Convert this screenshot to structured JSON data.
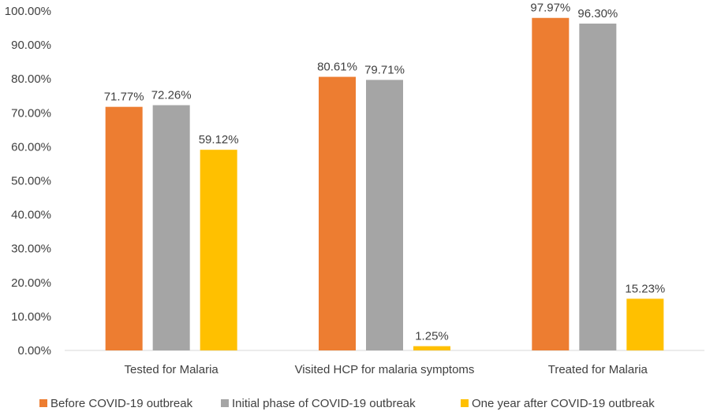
{
  "chart_data": {
    "type": "bar",
    "categories": [
      "Tested for Malaria",
      "Visited HCP for malaria symptoms",
      "Treated for Malaria"
    ],
    "series": [
      {
        "name": "Before COVID-19 outbreak",
        "color": "#ED7D31",
        "values": [
          71.77,
          80.61,
          97.97
        ],
        "labels": [
          "71.77%",
          "80.61%",
          "97.97%"
        ]
      },
      {
        "name": "Initial phase of COVID-19 outbreak",
        "color": "#A5A5A5",
        "values": [
          72.26,
          79.71,
          96.3
        ],
        "labels": [
          "72.26%",
          "79.71%",
          "96.30%"
        ]
      },
      {
        "name": "One year after COVID-19 outbreak",
        "color": "#FFC000",
        "values": [
          59.12,
          1.25,
          15.23
        ],
        "labels": [
          "59.12%",
          "1.25%",
          "15.23%"
        ]
      }
    ],
    "yticks": [
      "0.00%",
      "10.00%",
      "20.00%",
      "30.00%",
      "40.00%",
      "50.00%",
      "60.00%",
      "70.00%",
      "80.00%",
      "90.00%",
      "100.00%"
    ],
    "ylim": [
      0,
      100
    ],
    "grid": false,
    "legend": "bottom"
  }
}
